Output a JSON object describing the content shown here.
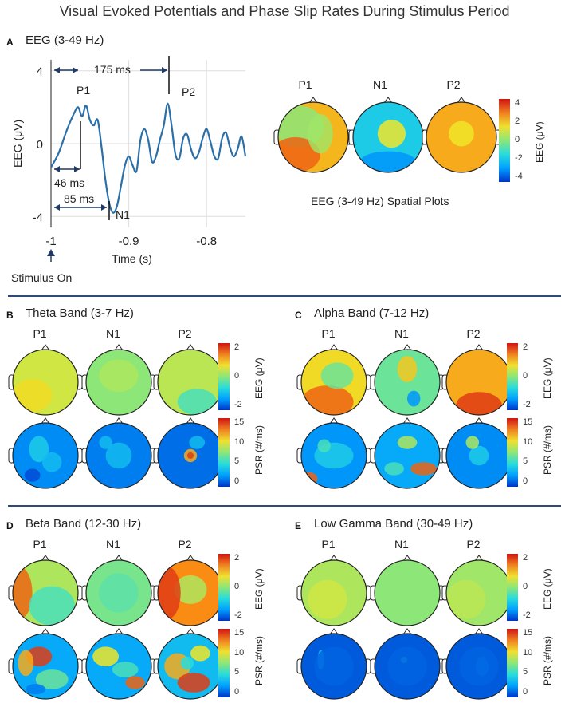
{
  "figure_title": "Visual Evoked Potentials and Phase Slip Rates During Stimulus Period",
  "panel_a": {
    "letter": "A",
    "title": "EEG (3-49 Hz)",
    "spatial_caption": "EEG (3-49 Hz) Spatial Plots",
    "stimulus_label": "Stimulus On",
    "annotations": {
      "a175": "175 ms",
      "a46": "46 ms",
      "a85": "85 ms",
      "p1": "P1",
      "n1": "N1",
      "p2": "P2"
    }
  },
  "panels": [
    {
      "letter": "B",
      "title": "Theta Band (3-7 Hz)"
    },
    {
      "letter": "C",
      "title": "Alpha Band (7-12 Hz)"
    },
    {
      "letter": "D",
      "title": "Beta Band (12-30 Hz)"
    },
    {
      "letter": "E",
      "title": "Low Gamma Band (30-49 Hz)"
    }
  ],
  "conditions": [
    "P1",
    "N1",
    "P2"
  ],
  "colorbars": {
    "eeg_a": {
      "label": "EEG (μV)",
      "ticks": [
        "4",
        "2",
        "0",
        "-2",
        "-4"
      ]
    },
    "eeg": {
      "label": "EEG (μV)",
      "ticks": [
        "2",
        "0",
        "-2"
      ]
    },
    "psr": {
      "label": "PSR  (#/ms)",
      "ticks": [
        "15",
        "10",
        "5",
        "0"
      ]
    }
  },
  "colors": {
    "trace": "#2b6fa8",
    "arrow": "#1f3a66",
    "divider": "#2d4a7a"
  },
  "chart_data": {
    "type": "line",
    "title": "",
    "xlabel": "Time (s)",
    "ylabel": "EEG (μV)",
    "xlim": [
      -1.0,
      -0.75
    ],
    "ylim": [
      -4.6,
      4.6
    ],
    "xticks": [
      -1,
      -0.9,
      -0.8
    ],
    "xtick_labels": [
      "-1",
      "-0.9",
      "-0.8"
    ],
    "yticks": [
      4,
      0,
      -4
    ],
    "ytick_labels": [
      "4",
      "0",
      "-4"
    ],
    "grid": true,
    "series": [
      {
        "x": [
          -1.0,
          -0.99,
          -0.98,
          -0.97,
          -0.965,
          -0.96,
          -0.955,
          -0.95,
          -0.945,
          -0.94,
          -0.935,
          -0.93,
          -0.925,
          -0.92,
          -0.915,
          -0.91,
          -0.905,
          -0.9,
          -0.895,
          -0.89,
          -0.885,
          -0.88,
          -0.875,
          -0.87,
          -0.865,
          -0.86,
          -0.855,
          -0.85,
          -0.845,
          -0.84,
          -0.835,
          -0.83,
          -0.825,
          -0.82,
          -0.815,
          -0.81,
          -0.805,
          -0.8,
          -0.795,
          -0.79,
          -0.785,
          -0.78,
          -0.775,
          -0.77,
          -0.765,
          -0.76,
          -0.755,
          -0.75
        ],
        "y": [
          -1.3,
          -0.5,
          0.7,
          1.7,
          2.0,
          1.5,
          2.1,
          1.3,
          1.0,
          1.3,
          -0.2,
          -2.0,
          -3.3,
          -3.8,
          -3.4,
          -2.3,
          -1.2,
          -0.7,
          -1.2,
          -1.5,
          0.2,
          0.8,
          0.2,
          -1.0,
          -0.7,
          0.2,
          1.0,
          2.2,
          1.0,
          -0.6,
          -0.8,
          0.3,
          0.5,
          -0.3,
          -0.8,
          -0.5,
          0.3,
          0.8,
          0.1,
          -0.7,
          -0.8,
          0.3,
          0.6,
          -0.2,
          -0.7,
          -0.3,
          0.4,
          -0.7
        ]
      }
    ]
  }
}
